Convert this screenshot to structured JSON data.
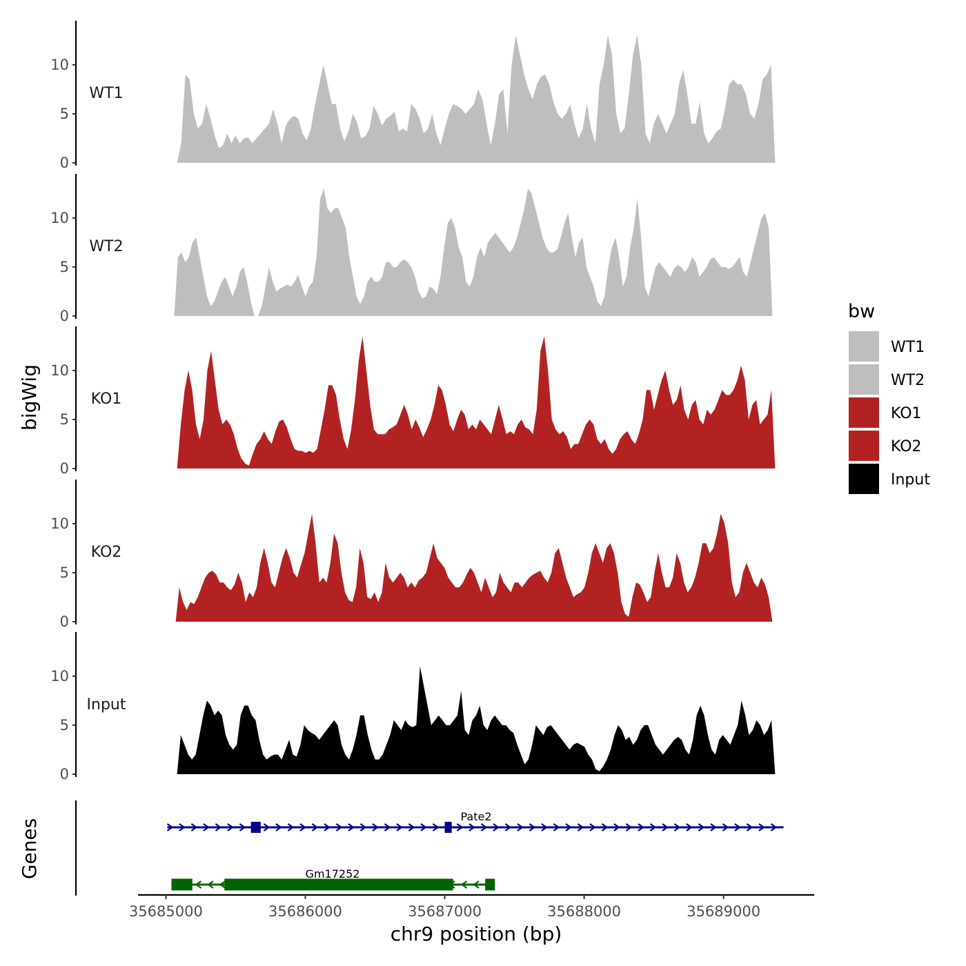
{
  "chart_data": {
    "type": "area",
    "xlabel": "chr9 position (bp)",
    "ylabel": "bigWig",
    "genes_label": "Genes",
    "xlim": [
      35684800,
      35689650
    ],
    "x_ticks": [
      35685000,
      35686000,
      35687000,
      35688000,
      35689000
    ],
    "x_tick_labels": [
      "35685000",
      "35686000",
      "35687000",
      "35688000",
      "35689000"
    ],
    "ylim": [
      0,
      14.5
    ],
    "y_ticks": [
      0,
      5,
      10
    ],
    "y_tick_labels": [
      "0",
      "5",
      "10"
    ],
    "legend": {
      "title": "bw",
      "position": "right",
      "entries": [
        {
          "label": "WT1",
          "color": "#bebebe"
        },
        {
          "label": "WT2",
          "color": "#bebebe"
        },
        {
          "label": "KO1",
          "color": "#b22222"
        },
        {
          "label": "KO2",
          "color": "#b22222"
        },
        {
          "label": "Input",
          "color": "#000000"
        }
      ]
    },
    "series": [
      {
        "name": "WT1",
        "color": "#bebebe",
        "x_start": 35685080,
        "x_end": 35689370,
        "values": [
          0,
          2,
          9,
          8.5,
          5,
          3.5,
          4,
          6,
          4.5,
          2.8,
          1.5,
          1.8,
          3,
          2,
          2.8,
          2,
          2.5,
          2.6,
          2,
          2.5,
          3,
          3.5,
          4,
          5.5,
          4,
          2,
          3.8,
          4.5,
          4.8,
          4.5,
          3,
          2.3,
          3.5,
          6,
          8,
          10,
          8,
          6,
          6,
          3.5,
          2.2,
          3.2,
          5,
          4.2,
          2.5,
          2.7,
          3.5,
          5.8,
          5,
          3.8,
          4.5,
          4.8,
          5.2,
          3.2,
          3.5,
          3.2,
          6,
          5.5,
          4.5,
          3,
          3.5,
          5,
          3,
          1.8,
          3.5,
          5,
          6,
          5.8,
          5.5,
          5,
          5.5,
          6,
          7.5,
          6.5,
          4,
          1.8,
          4,
          7,
          7.5,
          3,
          10,
          13,
          11,
          9,
          7.5,
          6.5,
          8,
          8.8,
          9,
          8,
          6.2,
          5,
          4.5,
          5,
          6,
          4,
          2.5,
          3.5,
          6,
          3.5,
          2,
          8,
          10,
          13,
          11,
          5,
          3,
          3.5,
          7,
          11,
          13,
          10,
          3,
          2,
          4,
          5,
          4,
          3,
          4,
          5,
          8,
          9.5,
          7,
          4,
          4,
          6.2,
          3,
          2,
          2.5,
          3.2,
          3.5,
          5.5,
          8,
          8.5,
          8,
          8,
          7,
          5,
          4.5,
          6,
          8.5,
          9,
          10,
          0
        ]
      },
      {
        "name": "WT2",
        "color": "#bebebe",
        "x_start": 35685060,
        "x_end": 35689350,
        "values": [
          0,
          6,
          6.5,
          5.5,
          6,
          7.5,
          8,
          6,
          4,
          2,
          1,
          1.5,
          2.5,
          3.5,
          4,
          3,
          2,
          3,
          4.5,
          5,
          3.5,
          1.5,
          0,
          0,
          1,
          3,
          5,
          3.5,
          2.5,
          2.8,
          3,
          3.2,
          3,
          3.5,
          4.2,
          3,
          2,
          3,
          3.5,
          6,
          12,
          13,
          11,
          10.5,
          11,
          11,
          10,
          9,
          6,
          4,
          2,
          1.2,
          2,
          3.5,
          4,
          3.5,
          3.5,
          4,
          5.5,
          5.5,
          5,
          5,
          5.5,
          5.8,
          5.5,
          5,
          4,
          2.5,
          1.8,
          2,
          3,
          2.8,
          2.2,
          4,
          7,
          9.5,
          10,
          9,
          7,
          6,
          3.5,
          3,
          4,
          6,
          7,
          6,
          7.5,
          8,
          8.5,
          8,
          7.5,
          7,
          6.5,
          7,
          8,
          9.5,
          11,
          13,
          12.5,
          11,
          9.5,
          8,
          7,
          6.5,
          6.5,
          6.8,
          8,
          9.5,
          10.5,
          8,
          6,
          7.5,
          8,
          5,
          4,
          3,
          1.5,
          1,
          2,
          5,
          7,
          8,
          6,
          3,
          4,
          7,
          9,
          12,
          8,
          3,
          2,
          3.5,
          5,
          5.5,
          5,
          4.5,
          4,
          4.8,
          5.2,
          5,
          4.5,
          5,
          6,
          5.5,
          4,
          4.5,
          5,
          5.8,
          6,
          5.5,
          5,
          5,
          4.8,
          5,
          5.5,
          6,
          4.5,
          4,
          5.5,
          7,
          8.5,
          10,
          10.5,
          9,
          0
        ]
      },
      {
        "name": "KO1",
        "color": "#b22222",
        "x_start": 35685080,
        "x_end": 35689370,
        "values": [
          0,
          4.5,
          8,
          10,
          8,
          4.5,
          3,
          5,
          10,
          12,
          9,
          6,
          4.5,
          5,
          4.5,
          3.5,
          2,
          1,
          0.5,
          0.3,
          1.5,
          2.5,
          3,
          3.8,
          3,
          2.5,
          3.8,
          4.8,
          5,
          4.2,
          3,
          2,
          1.8,
          1.8,
          1.6,
          1.8,
          1.6,
          2,
          4,
          6,
          8.5,
          8.5,
          7.5,
          5,
          3,
          2,
          4,
          7,
          11,
          13.5,
          10,
          6.5,
          4,
          3.5,
          3.5,
          3.5,
          4,
          4.2,
          4.5,
          5.5,
          6.5,
          5.5,
          4,
          5,
          4.2,
          3.2,
          4,
          5,
          6.5,
          8.5,
          8,
          6.5,
          4.5,
          3.8,
          5,
          6,
          5.5,
          4,
          4.5,
          4,
          5,
          4.5,
          4,
          3.5,
          5,
          6.5,
          5,
          3.5,
          3.8,
          3.5,
          4.5,
          5,
          4.2,
          4,
          3.5,
          6,
          12,
          13.5,
          10,
          5,
          4,
          3.5,
          3.8,
          3.2,
          2,
          2.5,
          2.5,
          3.5,
          4.5,
          5,
          4.5,
          3,
          2.5,
          3,
          2,
          1.5,
          2,
          3,
          3.5,
          3.8,
          3,
          2.5,
          3.5,
          5,
          8,
          8,
          6,
          7.5,
          9,
          10,
          8,
          6.5,
          7,
          8.5,
          6,
          5,
          6.5,
          7,
          5,
          4.5,
          6,
          5.5,
          6,
          7,
          8,
          7.5,
          7.5,
          8,
          9,
          10.5,
          9,
          5,
          6.5,
          7,
          4.5,
          5,
          5.5,
          8,
          0
        ]
      },
      {
        "name": "KO2",
        "color": "#b22222",
        "x_start": 35685070,
        "x_end": 35689350,
        "values": [
          0,
          3.5,
          2,
          1.2,
          2,
          1.8,
          2.5,
          3.5,
          4.5,
          5,
          5.2,
          4.8,
          4,
          4,
          3.5,
          3.2,
          3.8,
          5,
          4,
          2,
          3,
          2.5,
          3.5,
          6,
          7.5,
          6,
          4,
          3.5,
          5,
          6.5,
          7.5,
          6.5,
          5,
          4.5,
          5.8,
          7,
          9,
          11,
          8,
          4,
          4.5,
          4,
          6,
          9,
          8,
          5,
          3,
          2.2,
          2,
          3.5,
          7.5,
          6,
          2.5,
          2.3,
          3,
          2,
          3,
          6,
          4.5,
          4,
          4.5,
          5,
          4.5,
          3.5,
          4,
          3.5,
          4.2,
          4.5,
          5,
          6.5,
          8,
          6.5,
          6,
          5.5,
          4.5,
          4,
          3.5,
          3.5,
          4,
          4.8,
          5.5,
          5,
          4,
          3,
          4.5,
          3.5,
          2.5,
          3,
          5,
          4,
          3.5,
          3,
          4,
          4,
          3.5,
          4,
          4.5,
          4.8,
          5,
          5.2,
          4.5,
          4,
          5,
          7,
          7.5,
          6,
          4.5,
          3.5,
          2.5,
          2.8,
          3,
          3.5,
          5,
          7,
          8,
          7,
          6,
          7.5,
          8,
          7,
          5,
          2,
          0.8,
          0.5,
          2.5,
          4,
          3.8,
          3,
          2,
          2.5,
          5,
          7,
          5,
          3.5,
          3.5,
          4.5,
          7,
          6,
          4,
          3,
          3.5,
          4.5,
          6,
          8,
          8,
          7,
          7.5,
          9,
          11,
          10,
          8,
          4,
          2.5,
          3,
          5,
          6,
          5,
          4,
          3.5,
          4.5,
          3.8,
          2.5,
          0
        ]
      },
      {
        "name": "Input",
        "color": "#000000",
        "x_start": 35685080,
        "x_end": 35689370,
        "values": [
          0,
          4,
          3,
          2,
          1.5,
          2,
          4,
          6,
          7.5,
          7,
          6,
          6.5,
          6,
          4,
          3,
          2.5,
          3,
          6,
          7,
          7,
          6,
          5.5,
          3.5,
          2,
          1.5,
          1.8,
          2,
          2,
          1.5,
          2.5,
          3.5,
          2,
          1.8,
          3,
          5,
          4.5,
          4.2,
          4,
          3.5,
          4,
          4.5,
          5,
          5.5,
          5,
          3,
          2,
          1.5,
          2.5,
          4,
          6,
          6,
          4,
          2.5,
          1.5,
          1.5,
          2,
          3,
          4,
          5.5,
          5,
          4.5,
          5.5,
          5,
          4.8,
          5,
          11,
          9,
          7,
          5,
          5.5,
          6,
          5.5,
          5,
          5,
          5.5,
          6,
          8.5,
          4.5,
          4,
          5.5,
          6,
          7,
          5,
          4.5,
          5.5,
          6,
          5.5,
          5,
          5,
          4.5,
          4.2,
          3,
          2,
          1,
          1.5,
          3,
          5,
          4.5,
          4,
          4.8,
          5,
          4.5,
          4,
          3.5,
          3,
          2.5,
          3,
          3.2,
          3,
          2.8,
          2,
          1.5,
          0.5,
          0.3,
          0.8,
          1.5,
          2.5,
          4,
          5,
          4.5,
          3.5,
          3.8,
          3,
          3.5,
          4.5,
          5,
          5,
          4,
          3,
          2.5,
          2,
          2.5,
          3,
          3.5,
          3.8,
          3.5,
          2.5,
          2,
          3.5,
          6,
          7,
          6,
          4,
          2.5,
          2,
          3.5,
          4,
          3.5,
          3,
          4,
          5,
          7.5,
          6,
          4,
          4.5,
          5.5,
          5,
          4,
          4.5,
          5.5,
          0
        ]
      }
    ],
    "gene_tracks": [
      {
        "gene": "Pate2",
        "strand": "+",
        "color": "#00008b",
        "start": 35685010,
        "end": 35689430,
        "exons": [
          [
            35685610,
            35685680
          ],
          [
            35687000,
            35687050
          ]
        ]
      },
      {
        "gene": "Gm17252",
        "strand": "-",
        "color": "#006400",
        "start": 35685040,
        "end": 35687360,
        "exons": [
          [
            35685040,
            35685190
          ],
          [
            35685420,
            35687060
          ],
          [
            35687290,
            35687360
          ]
        ]
      }
    ]
  }
}
